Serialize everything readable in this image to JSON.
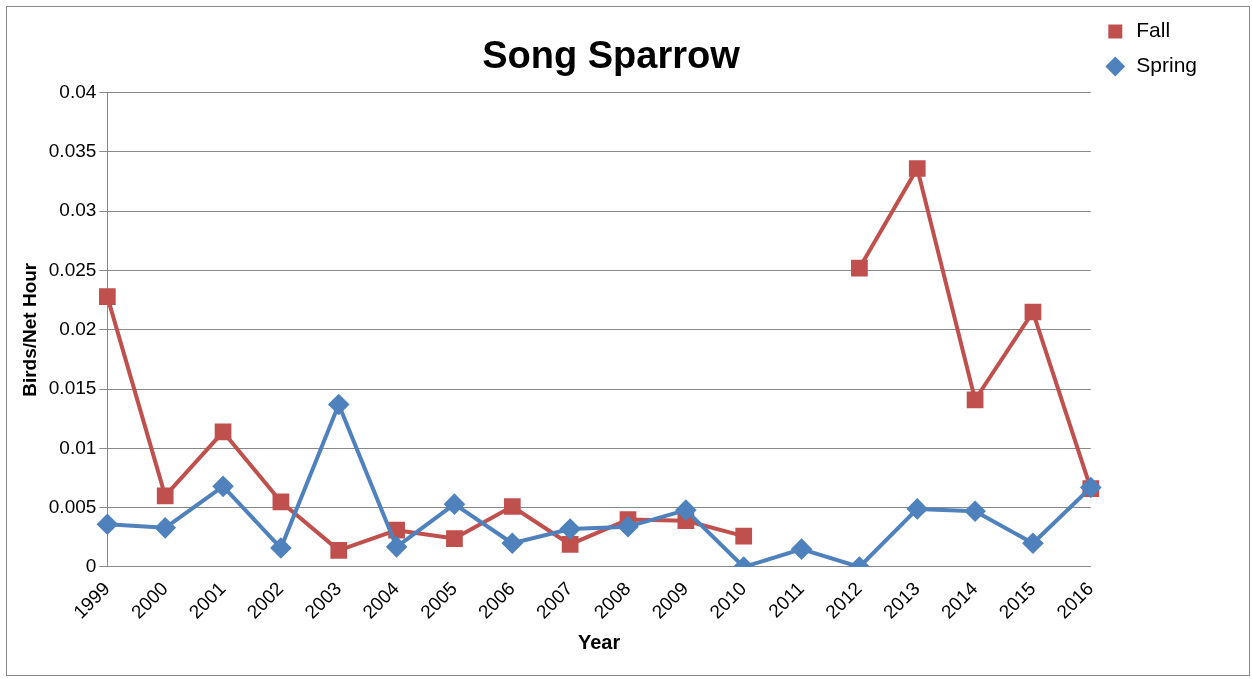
{
  "chart_data": {
    "type": "line",
    "title": "Song Sparrow",
    "xlabel": "Year",
    "ylabel": "Birds/Net Hour",
    "categories": [
      "1999",
      "2000",
      "2001",
      "2002",
      "2003",
      "2004",
      "2005",
      "2006",
      "2007",
      "2008",
      "2009",
      "2010",
      "2011",
      "2012",
      "2013",
      "2014",
      "2015",
      "2016"
    ],
    "series": [
      {
        "name": "Fall",
        "color": "#c0504d",
        "marker": "square",
        "values": [
          0.0228,
          0.006,
          0.0114,
          0.0055,
          0.0014,
          0.0031,
          0.0024,
          0.0051,
          0.0019,
          0.004,
          0.0039,
          0.0026,
          null,
          0.0252,
          0.0336,
          0.0141,
          0.0215,
          0.0066
        ]
      },
      {
        "name": "Spring",
        "color": "#4f81bd",
        "marker": "diamond",
        "values": [
          0.0036,
          0.0033,
          0.0068,
          0.0016,
          0.0137,
          0.0017,
          0.0053,
          0.002,
          0.0032,
          0.0034,
          0.0048,
          0,
          0.0015,
          0,
          0.0049,
          0.0047,
          0.002,
          0.0067
        ]
      }
    ],
    "ylim": [
      0,
      0.04
    ],
    "yticks": [
      0,
      0.005,
      0.01,
      0.015,
      0.02,
      0.025,
      0.03,
      0.035,
      0.04
    ],
    "grid": "y",
    "legend": "top right",
    "line_style": "solid"
  }
}
